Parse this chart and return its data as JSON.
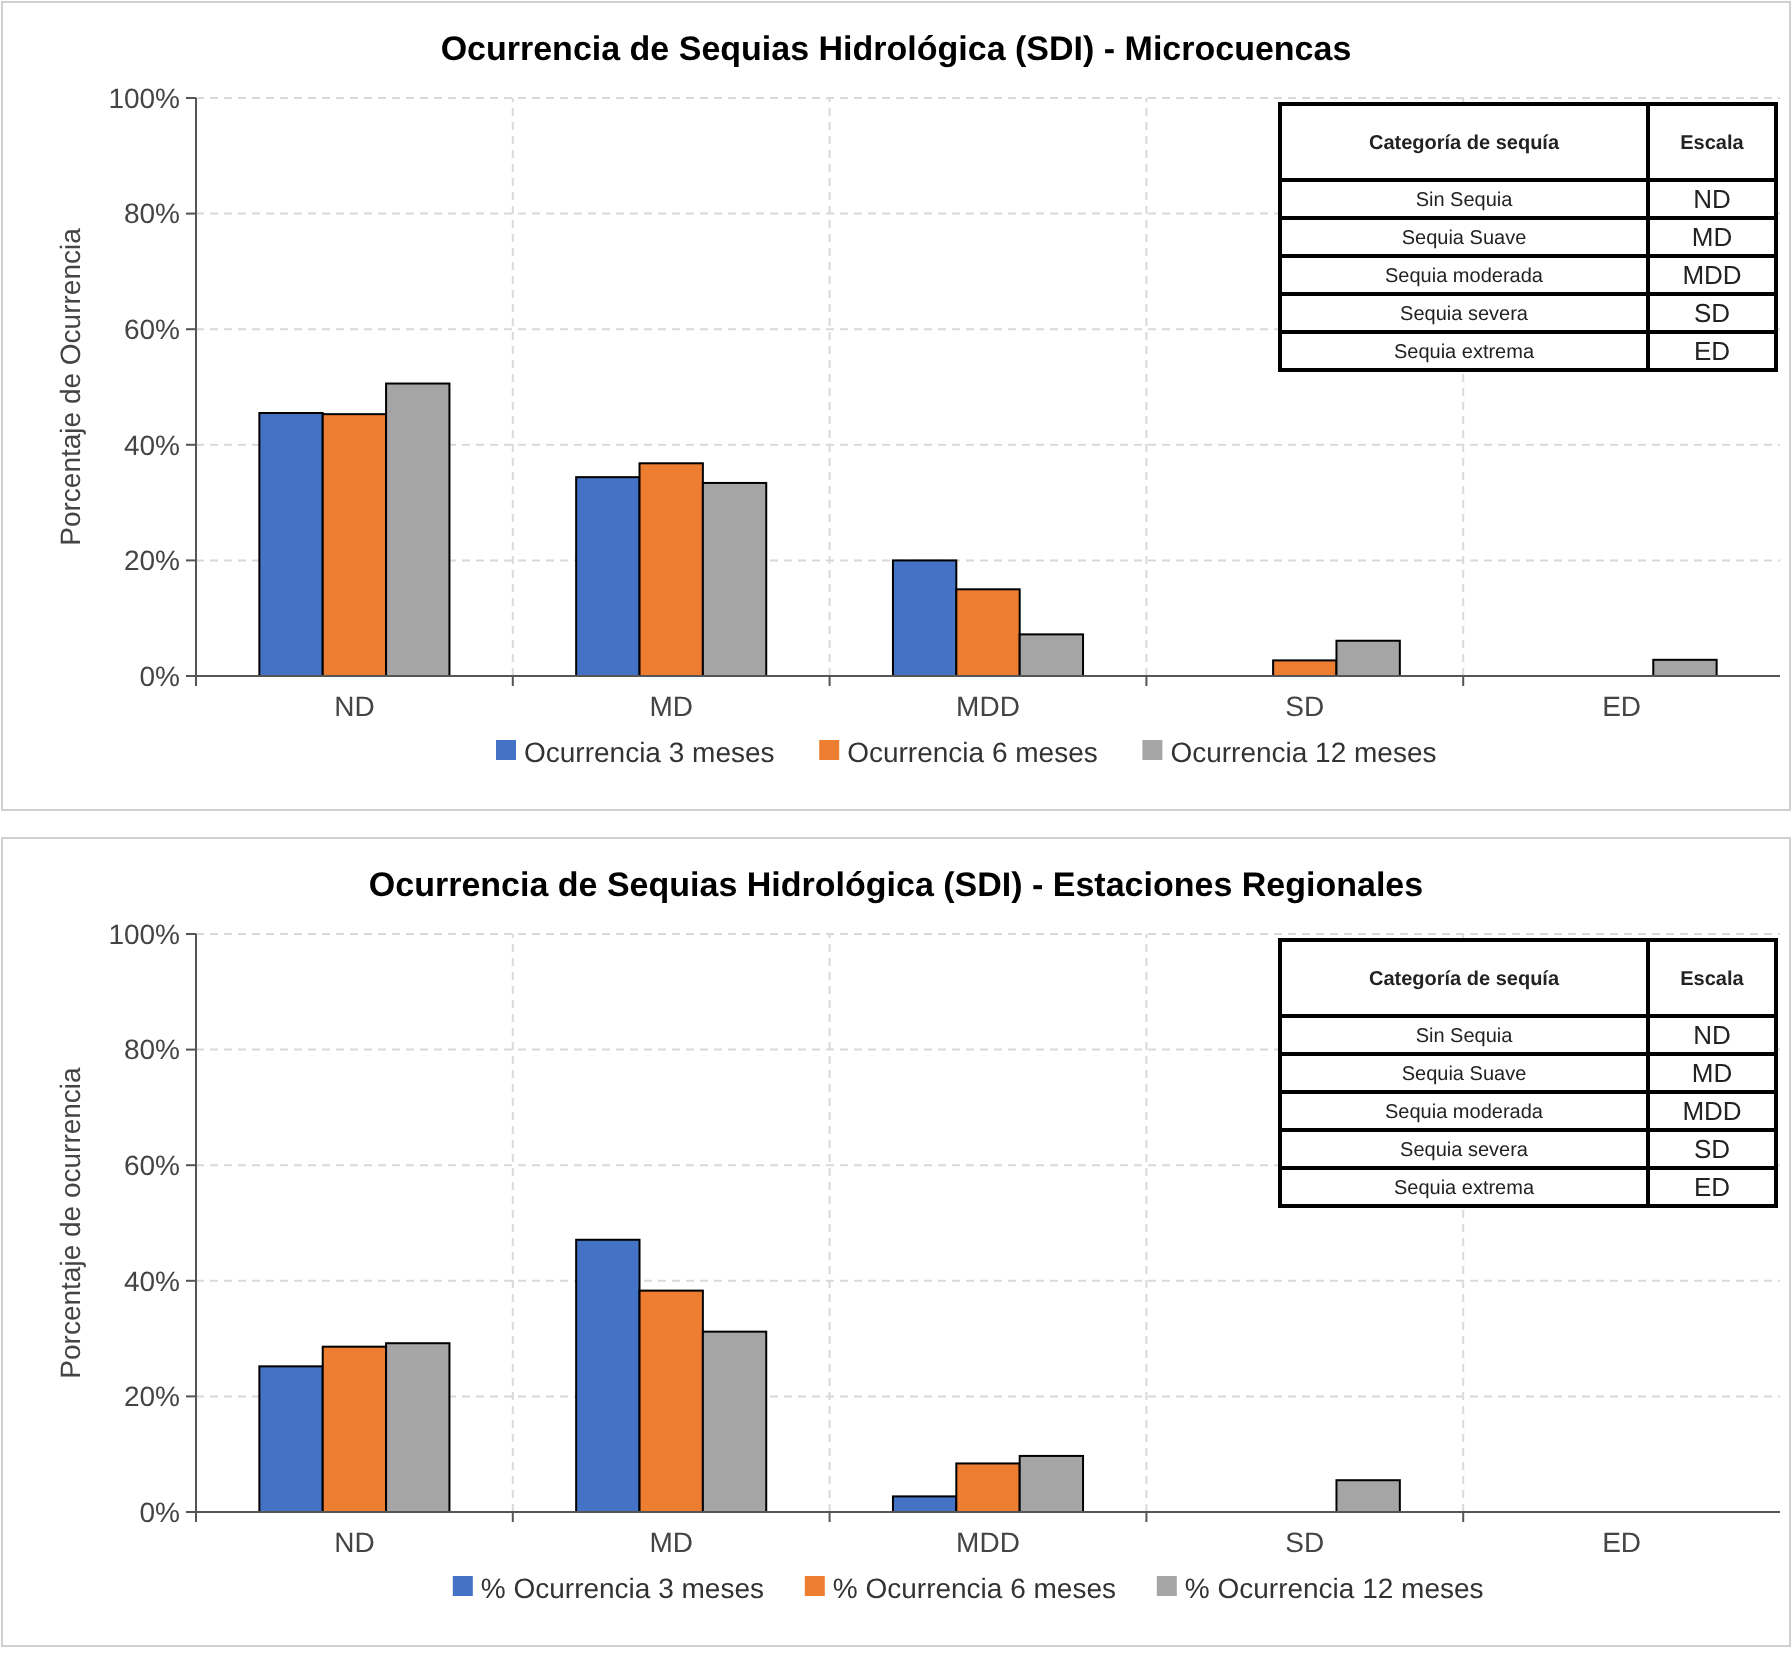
{
  "chart_data": [
    {
      "type": "bar",
      "title": "Ocurrencia de Sequias Hidrológica (SDI) - Microcuencas",
      "ylabel": "Porcentaje de Ocurrencia",
      "categories": [
        "ND",
        "MD",
        "MDD",
        "SD",
        "ED"
      ],
      "series": [
        {
          "name": "Ocurrencia 3 meses",
          "color": "#4472c4",
          "values": [
            45.5,
            34.4,
            20.0,
            0,
            0
          ]
        },
        {
          "name": "Ocurrencia 6 meses",
          "color": "#ed7d31",
          "values": [
            45.3,
            36.8,
            15.0,
            2.7,
            0
          ]
        },
        {
          "name": "Ocurrencia 12 meses",
          "color": "#a5a5a5",
          "values": [
            50.6,
            33.4,
            7.2,
            6.1,
            2.8
          ]
        }
      ],
      "ylim": [
        0,
        100
      ],
      "yticks": [
        {
          "value": 0,
          "label": "0%"
        },
        {
          "value": 20,
          "label": "20%"
        },
        {
          "value": 40,
          "label": "40%"
        },
        {
          "value": 60,
          "label": "60%"
        },
        {
          "value": 80,
          "label": "80%"
        },
        {
          "value": 100,
          "label": "100%"
        }
      ],
      "grid": true,
      "legend": "bottom",
      "annotations": [
        "Categoría de sequía",
        "Escala",
        "Sin Sequia",
        "ND",
        "Sequia Suave",
        "MD",
        "Sequia moderada",
        "MDD",
        "Sequia severa",
        "SD",
        "Sequia extrema",
        "ED"
      ]
    },
    {
      "type": "bar",
      "title": "Ocurrencia de Sequias Hidrológica (SDI) - Estaciones Regionales",
      "ylabel": "Porcentaje de ocurrencia",
      "categories": [
        "ND",
        "MD",
        "MDD",
        "SD",
        "ED"
      ],
      "series": [
        {
          "name": "% Ocurrencia 3 meses",
          "color": "#4472c4",
          "values": [
            25.2,
            47.1,
            2.7,
            0,
            0
          ]
        },
        {
          "name": "% Ocurrencia 6 meses",
          "color": "#ed7d31",
          "values": [
            28.6,
            38.3,
            8.4,
            0,
            0
          ]
        },
        {
          "name": "% Ocurrencia 12 meses",
          "color": "#a5a5a5",
          "values": [
            29.2,
            31.2,
            9.7,
            5.5,
            0
          ]
        }
      ],
      "ylim": [
        0,
        100
      ],
      "yticks": [
        {
          "value": 0,
          "label": "0%"
        },
        {
          "value": 20,
          "label": "20%"
        },
        {
          "value": 40,
          "label": "40%"
        },
        {
          "value": 60,
          "label": "60%"
        },
        {
          "value": 80,
          "label": "80%"
        },
        {
          "value": 100,
          "label": "100%"
        }
      ],
      "grid": true,
      "legend": "bottom",
      "annotations": [
        "Categoría de sequía",
        "Escala",
        "Sin Sequia",
        "ND",
        "Sequia Suave",
        "MD",
        "Sequia moderada",
        "MDD",
        "Sequia severa",
        "SD",
        "Sequia extrema",
        "ED"
      ]
    }
  ]
}
